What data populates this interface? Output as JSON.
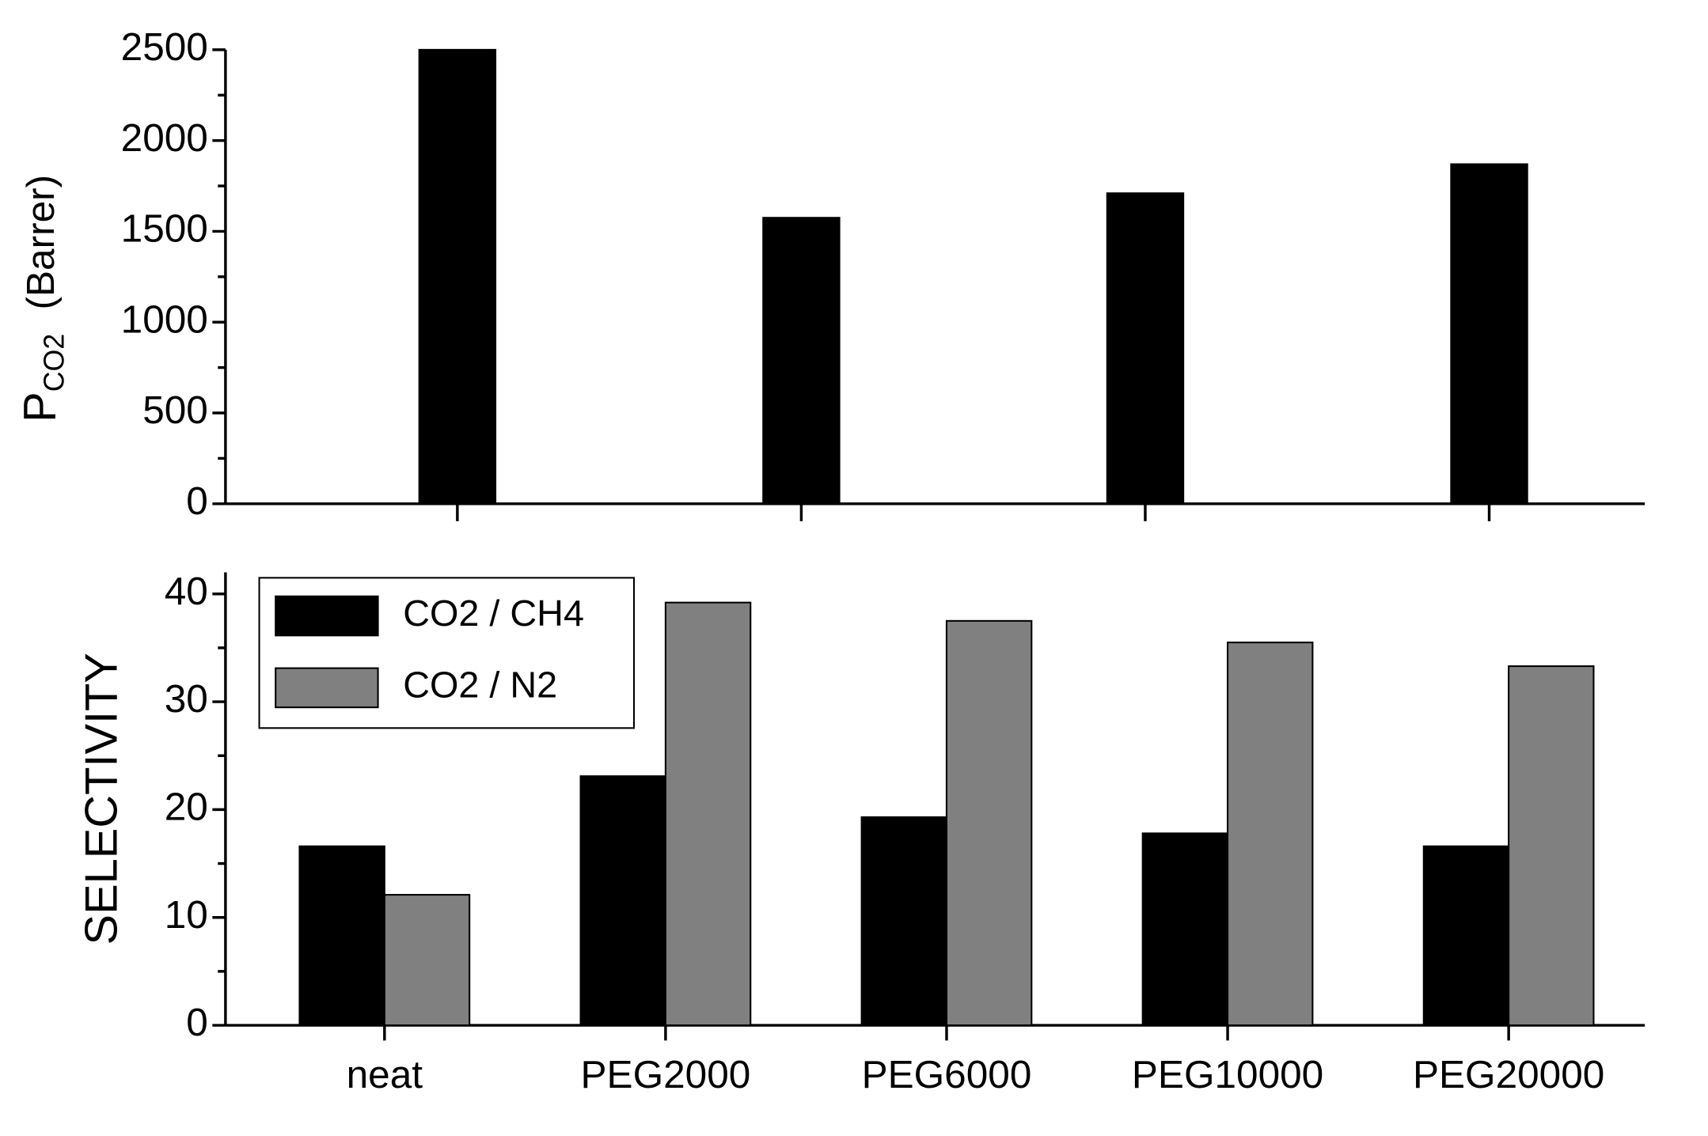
{
  "chart_data": [
    {
      "type": "bar",
      "y_label": "P",
      "y_label_sub": "CO2",
      "y_label_unit": "(Barrer)",
      "categories": [
        null,
        null,
        null,
        null
      ],
      "values": [
        2500,
        1575,
        1710,
        1870
      ],
      "color": "#000000",
      "ylim": [
        0,
        2500
      ],
      "yticks": [
        0,
        500,
        1000,
        1500,
        2000,
        2500
      ]
    },
    {
      "type": "grouped_bar",
      "y_label": "SELECTIVITY",
      "categories": [
        "neat",
        "PEG2000",
        "PEG6000",
        "PEG10000",
        "PEG20000"
      ],
      "series": [
        {
          "name": "CO2 / CH4",
          "color": "#000000",
          "values": [
            16.6,
            23.1,
            19.3,
            17.8,
            16.6
          ]
        },
        {
          "name": "CO2 / N2",
          "color": "#808080",
          "values": [
            12.1,
            39.2,
            37.5,
            35.5,
            33.3
          ]
        }
      ],
      "ylim": [
        0,
        42
      ],
      "yticks": [
        0,
        10,
        20,
        30,
        40
      ],
      "legend": "upper left"
    }
  ]
}
